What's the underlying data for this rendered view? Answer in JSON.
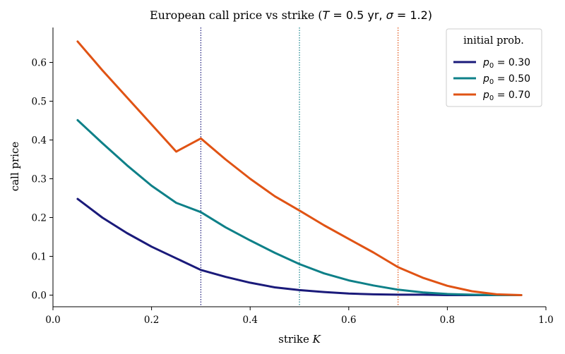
{
  "chart_data": {
    "type": "line",
    "title": {
      "prefix": "European call price vs strike (",
      "T_sym": "T",
      "T_rest": " = 0.5 yr, ",
      "sigma_sym": "σ",
      "sigma_rest": " = 1.2)"
    },
    "xlabel": {
      "main": "strike ",
      "sym": "K"
    },
    "ylabel": "call price",
    "xlim": [
      0.0,
      1.0
    ],
    "ylim": [
      -0.03,
      0.69
    ],
    "xticks": [
      0.0,
      0.2,
      0.4,
      0.6,
      0.8,
      1.0
    ],
    "xtick_labels": [
      "0.0",
      "0.2",
      "0.4",
      "0.6",
      "0.8",
      "1.0"
    ],
    "yticks": [
      0.0,
      0.1,
      0.2,
      0.3,
      0.4,
      0.5,
      0.6
    ],
    "ytick_labels": [
      "0.0",
      "0.1",
      "0.2",
      "0.3",
      "0.4",
      "0.5",
      "0.6"
    ],
    "grid": false,
    "legend": {
      "placement": "top-right",
      "title": "initial prob."
    },
    "x": [
      0.05,
      0.1,
      0.15,
      0.2,
      0.25,
      0.3,
      0.35,
      0.4,
      0.45,
      0.5,
      0.55,
      0.6,
      0.65,
      0.7,
      0.75,
      0.8,
      0.85,
      0.9,
      0.95
    ],
    "series": [
      {
        "name": {
          "sym": "p",
          "sub": "0",
          "rest": " = 0.30"
        },
        "color": "#1a1a7a",
        "vline": 0.3,
        "values": [
          0.248,
          0.2,
          0.16,
          0.125,
          0.095,
          0.065,
          0.047,
          0.032,
          0.02,
          0.013,
          0.008,
          0.004,
          0.002,
          0.001,
          0.001,
          0.0,
          0.0,
          0.0,
          0.0
        ]
      },
      {
        "name": {
          "sym": "p",
          "sub": "0",
          "rest": " = 0.50"
        },
        "color": "#0e8088",
        "vline": 0.5,
        "values": [
          0.451,
          0.392,
          0.335,
          0.282,
          0.238,
          0.214,
          0.175,
          0.141,
          0.109,
          0.08,
          0.056,
          0.038,
          0.025,
          0.014,
          0.007,
          0.003,
          0.001,
          0.0,
          0.0
        ]
      },
      {
        "name": {
          "sym": "p",
          "sub": "0",
          "rest": " = 0.70"
        },
        "color": "#e05314",
        "vline": 0.7,
        "values": [
          0.654,
          0.58,
          0.51,
          0.44,
          0.37,
          0.404,
          0.35,
          0.3,
          0.255,
          0.218,
          0.18,
          0.145,
          0.11,
          0.072,
          0.045,
          0.024,
          0.01,
          0.002,
          0.0
        ]
      }
    ]
  }
}
